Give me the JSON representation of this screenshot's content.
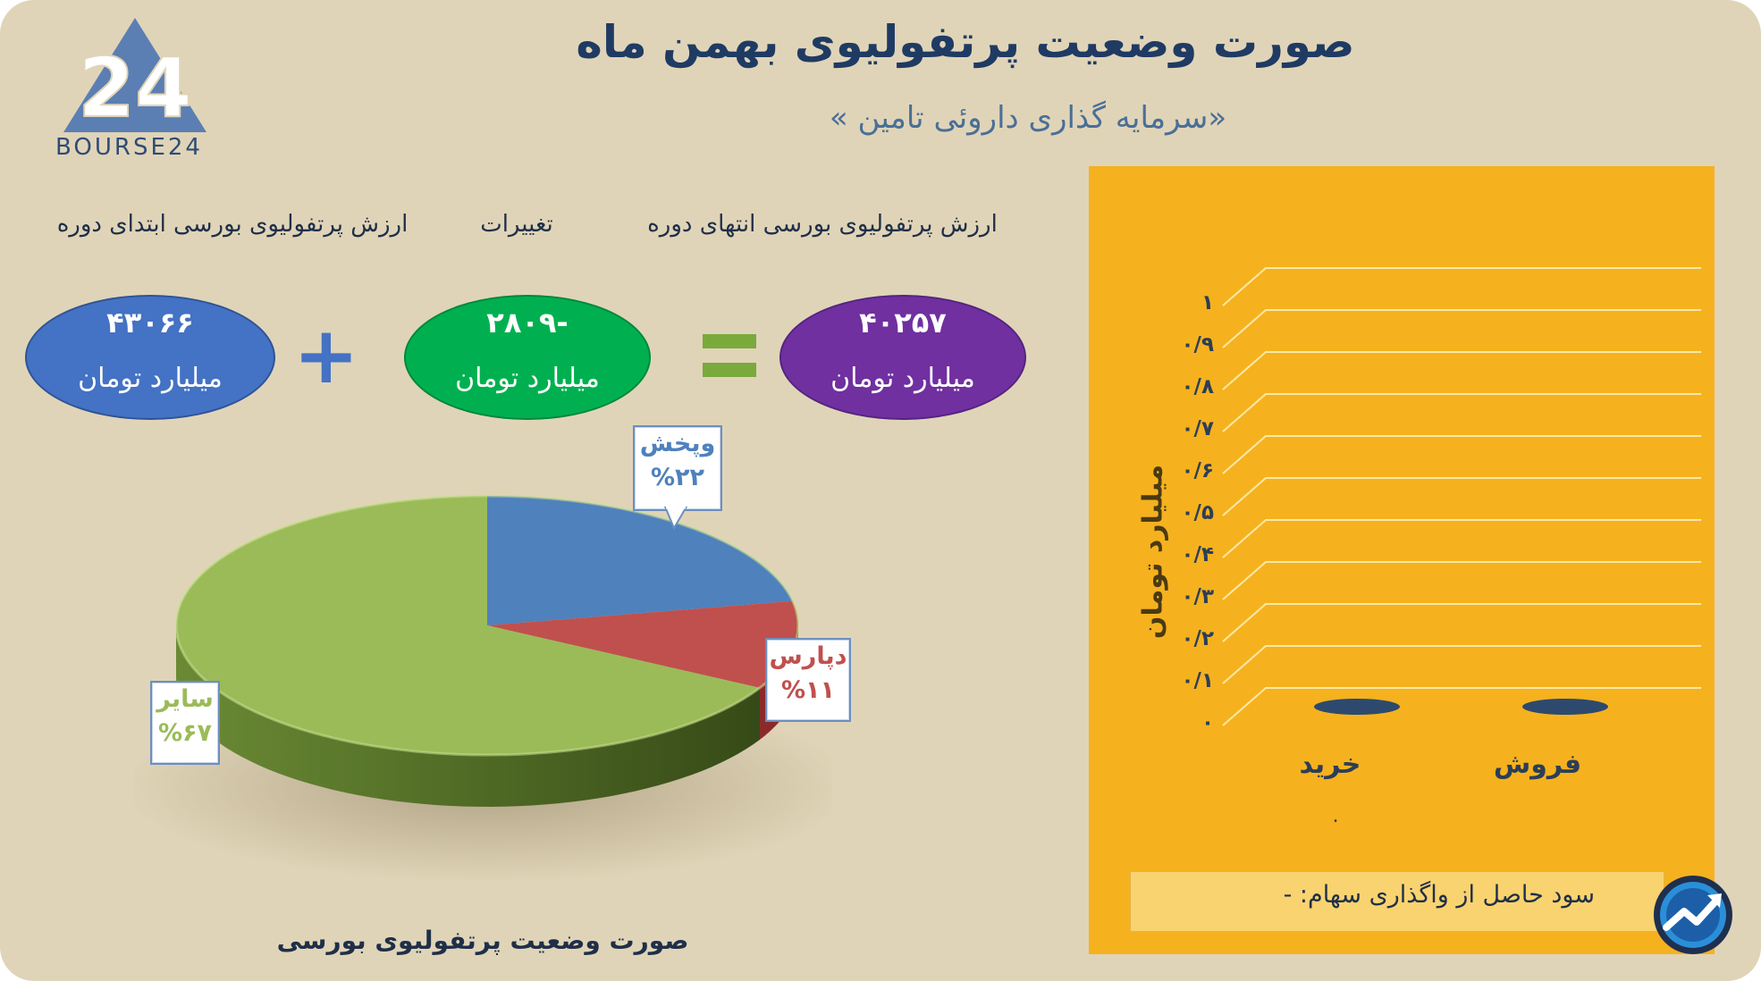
{
  "header": {
    "title": "صورت وضعیت پرتفولیوی بهمن ماه",
    "subtitle": "«سرمایه گذاری داروئی تامین  »",
    "logo_text": "BOURSE24"
  },
  "equation": {
    "start_label": "ارزش پرتفولیوی بورسی ابتدای دوره",
    "change_label": "تغییرات",
    "end_label": "ارزش پرتفولیوی بورسی انتهای دوره",
    "start_value": "۴۳۰۶۶",
    "change_value": "-۲۸۰۹",
    "end_value": "۴۰۲۵۷",
    "unit": "میلیارد تومان",
    "plus_sign": "+",
    "equals_sign": "=",
    "colors": {
      "start": "#4472c4",
      "change": "#00b050",
      "end": "#7030a0"
    }
  },
  "pie": {
    "caption": "صورت وضعیت پرتفولیوی بورسی",
    "labels": [
      {
        "name": "وپخش",
        "pct": "%۲۲"
      },
      {
        "name": "دپارس",
        "pct": "%۱۱"
      },
      {
        "name": "سایر",
        "pct": "%۶۷"
      }
    ]
  },
  "bar_chart": {
    "ylabel": "میلیارد تومان",
    "yticks": [
      "۰",
      "۰/۱",
      "۰/۲",
      "۰/۳",
      "۰/۴",
      "۰/۵",
      "۰/۶",
      "۰/۷",
      "۰/۸",
      "۰/۹",
      "۱"
    ],
    "categories": [
      "خرید",
      "فروش"
    ],
    "under_label": "۰",
    "profit_text": "سود حاصل از واگذاری سهام: -"
  },
  "chart_data": [
    {
      "type": "pie",
      "title": "صورت وضعیت پرتفولیوی بورسی",
      "categories": [
        "وپخش",
        "دپارس",
        "سایر"
      ],
      "values": [
        22,
        11,
        67
      ],
      "colors": [
        "#4f81bd",
        "#c0504d",
        "#9bbb59"
      ]
    },
    {
      "type": "bar",
      "categories": [
        "خرید",
        "فروش"
      ],
      "values": [
        0,
        0
      ],
      "ylabel": "میلیارد تومان",
      "ylim": [
        0,
        1
      ],
      "grid": true
    }
  ]
}
